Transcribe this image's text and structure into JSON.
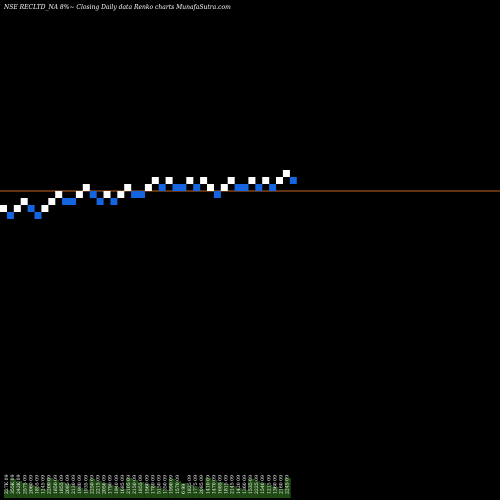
{
  "chart_data": {
    "type": "renko",
    "title": "NSE RECLTD_NA 8%~ Closing Daily data Renko charts MunafaSutra.com",
    "background": "#000000",
    "colors": {
      "up_brick": "#ffffff",
      "down_brick": "#1565e0",
      "reference_line": "#c0641e",
      "volume": "#1f4a14"
    },
    "reference_level": 0,
    "bricks": [
      {
        "dir": "up",
        "level": 0
      },
      {
        "dir": "down",
        "level": -1
      },
      {
        "dir": "up",
        "level": 0
      },
      {
        "dir": "up",
        "level": 1
      },
      {
        "dir": "down",
        "level": 0
      },
      {
        "dir": "down",
        "level": -1
      },
      {
        "dir": "up",
        "level": 0
      },
      {
        "dir": "up",
        "level": 1
      },
      {
        "dir": "up",
        "level": 2
      },
      {
        "dir": "down",
        "level": 1
      },
      {
        "dir": "down",
        "level": 1
      },
      {
        "dir": "up",
        "level": 2
      },
      {
        "dir": "up",
        "level": 3
      },
      {
        "dir": "down",
        "level": 2
      },
      {
        "dir": "down",
        "level": 1
      },
      {
        "dir": "up",
        "level": 2
      },
      {
        "dir": "down",
        "level": 1
      },
      {
        "dir": "up",
        "level": 2
      },
      {
        "dir": "up",
        "level": 3
      },
      {
        "dir": "down",
        "level": 2
      },
      {
        "dir": "down",
        "level": 2
      },
      {
        "dir": "up",
        "level": 3
      },
      {
        "dir": "up",
        "level": 4
      },
      {
        "dir": "down",
        "level": 3
      },
      {
        "dir": "up",
        "level": 4
      },
      {
        "dir": "down",
        "level": 3
      },
      {
        "dir": "down",
        "level": 3
      },
      {
        "dir": "up",
        "level": 4
      },
      {
        "dir": "down",
        "level": 3
      },
      {
        "dir": "up",
        "level": 4
      },
      {
        "dir": "up",
        "level": 3
      },
      {
        "dir": "down",
        "level": 2
      },
      {
        "dir": "up",
        "level": 3
      },
      {
        "dir": "up",
        "level": 4
      },
      {
        "dir": "down",
        "level": 3
      },
      {
        "dir": "down",
        "level": 3
      },
      {
        "dir": "up",
        "level": 4
      },
      {
        "dir": "down",
        "level": 3
      },
      {
        "dir": "up",
        "level": 4
      },
      {
        "dir": "down",
        "level": 3
      },
      {
        "dir": "up",
        "level": 4
      },
      {
        "dir": "up",
        "level": 5
      },
      {
        "dir": "down",
        "level": 4
      }
    ],
    "volume_labels": [
      "227K 09",
      "355K 09",
      "242K 09",
      "2575 09",
      "2060 09",
      "1855 09",
      "1245 09",
      "2200 09",
      "1850 09",
      "1855 09",
      "2085 09",
      "2130 09",
      "1980 09",
      "1935 09",
      "2250 09",
      "2215 09",
      "2050 09",
      "1790 09",
      "1940 09",
      "1685 09",
      "2105 09",
      "2150 09",
      "1855 09",
      "1560 09",
      "1780 09",
      "5150 09",
      "1350 09",
      "1990 09",
      "1570 09",
      "6 99",
      "1825 09",
      "1775 09",
      "2085 09",
      "1410 09",
      "1470 09",
      "1685 09",
      "1815 09",
      "2145 09",
      "1420 09",
      "1360 09",
      "1535 09",
      "2225 09",
      "1540 09",
      "1215 09",
      "1360 09",
      "2160 09",
      "2245 09"
    ]
  }
}
